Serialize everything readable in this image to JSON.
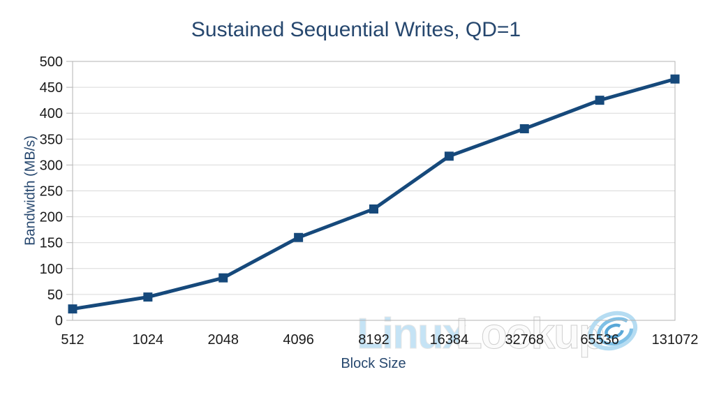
{
  "watermark": {
    "text_primary": "Linux",
    "text_secondary": "Lookup",
    "logo": "swirl-logo",
    "color_primary": "#c5e3f5",
    "color_primary_outline": "#e6e6e6",
    "color_secondary": "#fbfbfb",
    "color_secondary_outline": "#cfcfcf",
    "logo_ring_color": "#b5dcf2",
    "logo_swirl_color": "#7fc0e6",
    "logo_core_color": "#59a7d7"
  },
  "chart_data": {
    "type": "line",
    "title": "Sustained Sequential Writes, QD=1",
    "xlabel": "Block Size",
    "ylabel": "Bandwidth (MB/s)",
    "categories": [
      "512",
      "1024",
      "2048",
      "4096",
      "8192",
      "16384",
      "32768",
      "65536",
      "131072"
    ],
    "series": [
      {
        "name": "Sustained Sequential Writes, QD=1",
        "values": [
          22,
          45,
          82,
          160,
          215,
          317,
          370,
          425,
          466
        ]
      }
    ],
    "ylim": [
      0,
      500
    ],
    "ytick_step": 50,
    "grid": "horizontal-gridlines",
    "legend_position": "none",
    "marker": "filled-square",
    "line_color": "#16497B",
    "marker_color": "#16497B",
    "gridline_color": "#d9d9d9",
    "axis_color": "#b3b3b3",
    "tick_label_color": "#1a1a1a",
    "title_color": "#26476E",
    "axis_title_color": "#26476E"
  }
}
